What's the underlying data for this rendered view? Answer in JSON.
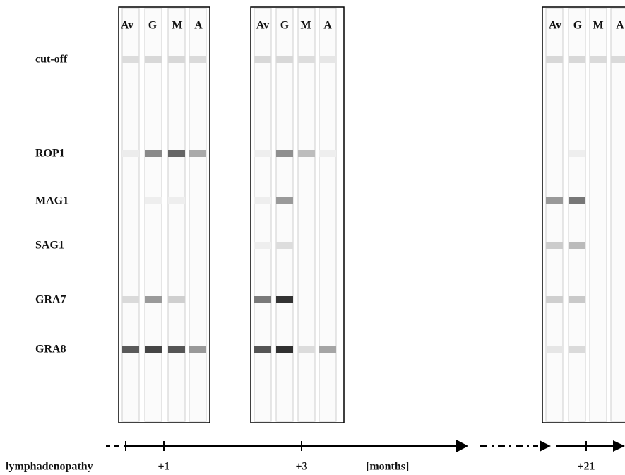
{
  "row_labels": [
    "cut-off",
    "ROP1",
    "MAG1",
    "SAG1",
    "GRA7",
    "GRA8"
  ],
  "panels": [
    {
      "lanes": [
        "Av",
        "G",
        "M",
        "A"
      ]
    },
    {
      "lanes": [
        "Av",
        "G",
        "M",
        "A"
      ]
    },
    {
      "lanes": [
        "Av",
        "G",
        "M",
        "A"
      ]
    }
  ],
  "timeline": {
    "start": "lymphadenopathy",
    "marks": [
      "+1",
      "+3",
      "+21"
    ],
    "unit": "[months]"
  }
}
